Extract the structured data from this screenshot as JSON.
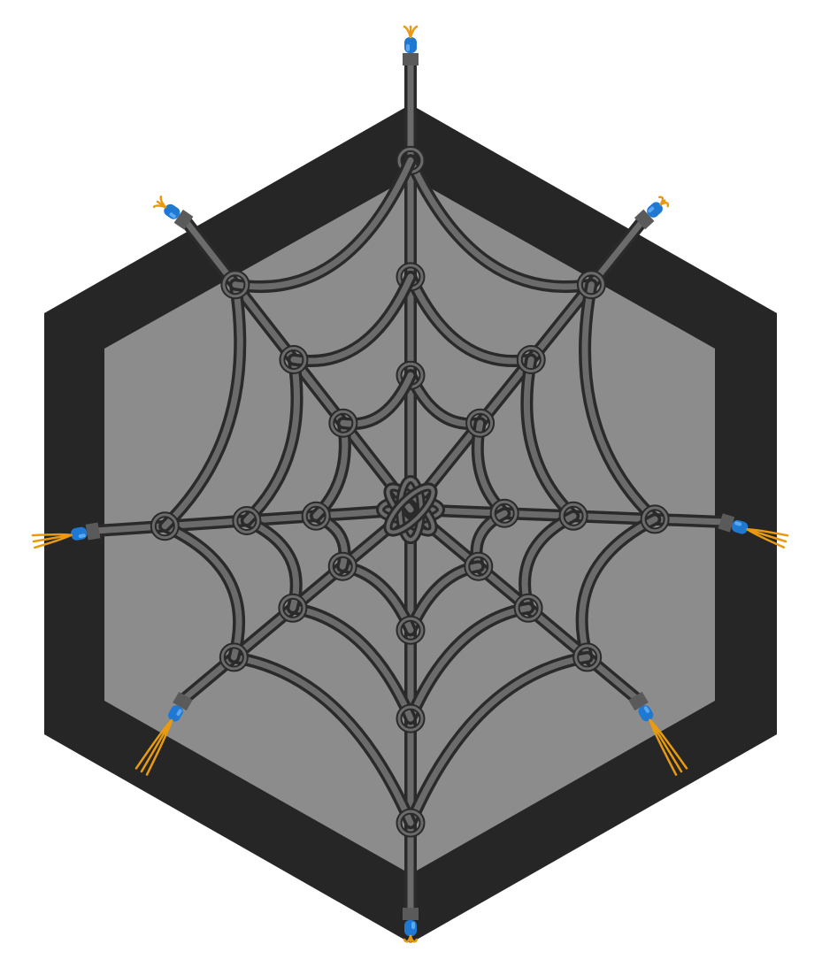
{
  "illustration": {
    "subject": "spider-web-hexagon",
    "anchor_count": 8,
    "ring_count": 3
  },
  "palette": {
    "background": "#ffffff",
    "hex_outer": "#262626",
    "hex_inner": "#8c8c8c",
    "strand_dark": "#2a2a2a",
    "strand_light": "#6b6b6b",
    "collar": "#5a5a5a",
    "connector_blue": "#1f78d1",
    "connector_highlight": "#5aa9f0",
    "wire_orange": "#e89a10"
  }
}
